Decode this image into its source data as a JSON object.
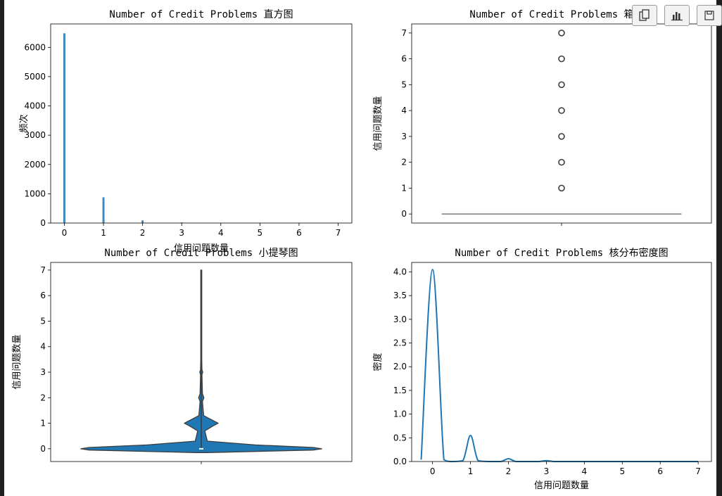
{
  "toolbar": {
    "icons": [
      "copy-icon",
      "bar-chart-icon",
      "save-icon"
    ]
  },
  "chart_data": [
    {
      "type": "bar",
      "title": "Number of Credit Problems 直方图",
      "xlabel": "信用问题数量",
      "ylabel": "频次",
      "xlim": [
        -0.35,
        7.35
      ],
      "ylim": [
        0,
        6800
      ],
      "xticks": [
        0,
        1,
        2,
        3,
        4,
        5,
        6,
        7
      ],
      "yticks": [
        0,
        1000,
        2000,
        3000,
        4000,
        5000,
        6000
      ],
      "categories": [
        0,
        1,
        2,
        3,
        4,
        5,
        6,
        7
      ],
      "values": [
        6480,
        880,
        90,
        20,
        6,
        4,
        2,
        1
      ],
      "color": "#1f77b4"
    },
    {
      "type": "box",
      "title": "Number of Credit Problems 箱线图",
      "xlabel": "",
      "ylabel": "信用问题数量",
      "ylim": [
        -0.35,
        7.35
      ],
      "yticks": [
        0,
        1,
        2,
        3,
        4,
        5,
        6,
        7
      ],
      "q1": 0,
      "median": 0,
      "q3": 0,
      "whisker_low": 0,
      "whisker_high": 0,
      "outliers": [
        1,
        2,
        3,
        4,
        5,
        6,
        7
      ],
      "color": "#1f77b4"
    },
    {
      "type": "violin",
      "title": "Number of Credit Problems 小提琴图",
      "xlabel": "",
      "ylabel": "信用问题数量",
      "ylim": [
        -0.5,
        7.3
      ],
      "yticks": [
        0,
        1,
        2,
        3,
        4,
        5,
        6,
        7
      ],
      "range": [
        0,
        7
      ],
      "median": 0,
      "density_profile": [
        {
          "y": -0.15,
          "w": 0.05
        },
        {
          "y": -0.05,
          "w": 0.93
        },
        {
          "y": 0.0,
          "w": 1.0
        },
        {
          "y": 0.05,
          "w": 0.93
        },
        {
          "y": 0.15,
          "w": 0.45
        },
        {
          "y": 0.3,
          "w": 0.05
        },
        {
          "y": 0.7,
          "w": 0.03
        },
        {
          "y": 0.9,
          "w": 0.1
        },
        {
          "y": 1.0,
          "w": 0.14
        },
        {
          "y": 1.1,
          "w": 0.1
        },
        {
          "y": 1.3,
          "w": 0.02
        },
        {
          "y": 1.85,
          "w": 0.01
        },
        {
          "y": 2.0,
          "w": 0.022
        },
        {
          "y": 2.15,
          "w": 0.01
        },
        {
          "y": 2.9,
          "w": 0.006
        },
        {
          "y": 3.0,
          "w": 0.012
        },
        {
          "y": 3.1,
          "w": 0.006
        },
        {
          "y": 3.5,
          "w": 0.004
        },
        {
          "y": 7.0,
          "w": 0.004
        }
      ],
      "color": "#1f77b4"
    },
    {
      "type": "line",
      "title": "Number of Credit Problems 核分布密度图",
      "xlabel": "信用问题数量",
      "ylabel": "密度",
      "xlim": [
        -0.55,
        7.35
      ],
      "ylim": [
        0,
        4.2
      ],
      "xticks": [
        0,
        1,
        2,
        3,
        4,
        5,
        6,
        7
      ],
      "yticks": [
        0.0,
        0.5,
        1.0,
        1.5,
        2.0,
        2.5,
        3.0,
        3.5,
        4.0
      ],
      "series": [
        {
          "x": [
            -0.3,
            0,
            0.3,
            0.5,
            0.8,
            1.0,
            1.2,
            1.5,
            1.8,
            2.0,
            2.2,
            2.5,
            2.8,
            3.0,
            3.2,
            3.5,
            4.0,
            5.0,
            6.0,
            7.0
          ],
          "y": [
            0.04,
            4.05,
            0.04,
            0.0,
            0.02,
            0.55,
            0.02,
            0.0,
            0.0,
            0.06,
            0.0,
            0.0,
            0.0,
            0.02,
            0.0,
            0.0,
            0.0,
            0.0,
            0.0,
            0.0
          ]
        }
      ],
      "color": "#1f77b4"
    }
  ]
}
